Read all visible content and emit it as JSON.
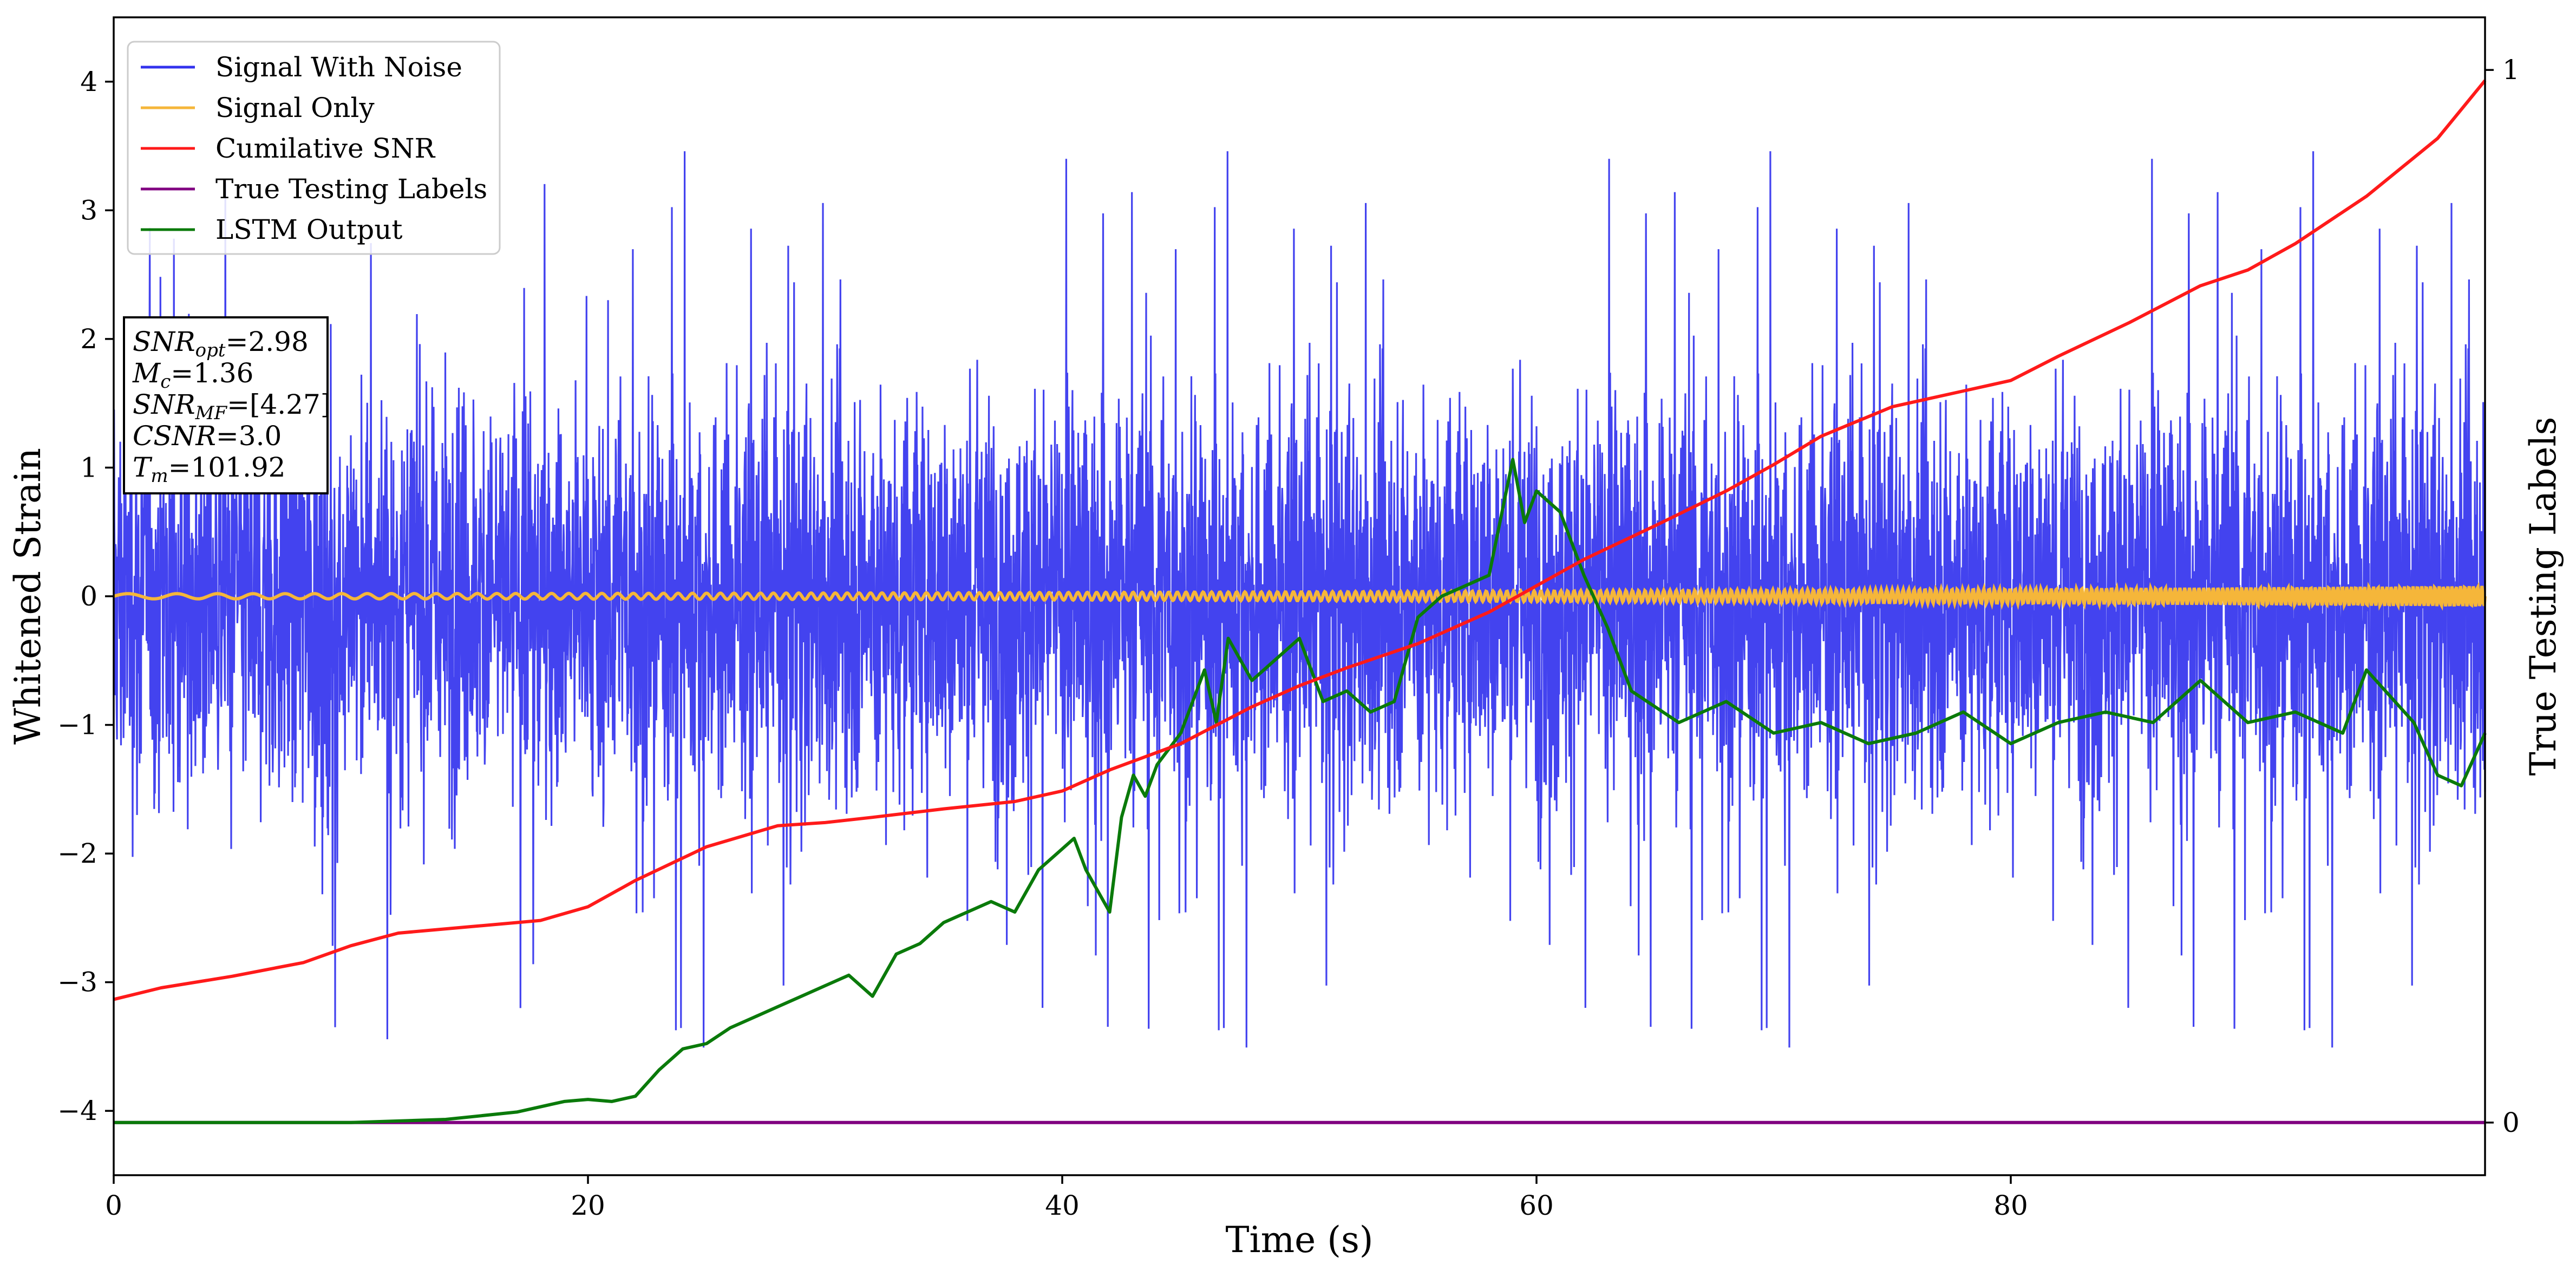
{
  "chart_data": {
    "type": "line",
    "xlabel": "Time (s)",
    "ylabel": "Whitened Strain",
    "ylabel_right": "True Testing Labels",
    "xlim": [
      0,
      100
    ],
    "ylim": [
      -4.5,
      4.5
    ],
    "ylim_right": [
      -0.05,
      1.05
    ],
    "x_ticks": [
      0,
      20,
      40,
      60,
      80
    ],
    "y_ticks": [
      -4,
      -3,
      -2,
      -1,
      0,
      1,
      2,
      3,
      4
    ],
    "y_right_ticks": [
      0,
      1
    ],
    "grid": false,
    "legend_position": "top-left",
    "colors": {
      "signal_with_noise": "#3333ee",
      "signal_only": "#f5b63a",
      "cumulative_snr": "#ff1a1a",
      "true_testing_labels": "#800080",
      "lstm_output": "#0a7a0a"
    },
    "series": [
      {
        "name": "Signal With Noise",
        "axis": "left",
        "description_kind": "noise band",
        "approx_range": [
          -4.1,
          4.0
        ],
        "typical_envelope": [
          -1.8,
          1.9
        ]
      },
      {
        "name": "Signal Only",
        "axis": "left",
        "description_kind": "chirp",
        "amplitude_start": 0.02,
        "amplitude_end": 0.08
      },
      {
        "name": "Cumilative SNR",
        "axis": "right",
        "x": [
          0,
          2,
          5,
          8,
          10,
          12,
          15,
          18,
          20,
          22,
          25,
          28,
          30,
          32,
          35,
          38,
          40,
          42,
          45,
          48,
          50,
          52,
          55,
          58,
          60,
          62,
          65,
          68,
          70,
          72,
          75,
          78,
          80,
          82,
          85,
          88,
          90,
          92,
          95,
          98,
          100
        ],
        "y": [
          0.117,
          0.128,
          0.139,
          0.152,
          0.168,
          0.18,
          0.186,
          0.192,
          0.205,
          0.23,
          0.262,
          0.282,
          0.285,
          0.29,
          0.298,
          0.305,
          0.315,
          0.335,
          0.36,
          0.395,
          0.415,
          0.432,
          0.455,
          0.485,
          0.51,
          0.535,
          0.567,
          0.6,
          0.625,
          0.652,
          0.68,
          0.695,
          0.705,
          0.728,
          0.76,
          0.795,
          0.81,
          0.835,
          0.88,
          0.935,
          0.99
        ]
      },
      {
        "name": "True Testing Labels",
        "axis": "right",
        "x": [
          0,
          100
        ],
        "y": [
          0,
          0
        ]
      },
      {
        "name": "LSTM Output",
        "axis": "right",
        "x": [
          0,
          5,
          10,
          14,
          17,
          19,
          20,
          21,
          22,
          23,
          24,
          25,
          26,
          27,
          28,
          29,
          30,
          31,
          32,
          33,
          34,
          35,
          36,
          37,
          38,
          39,
          40,
          40.5,
          41,
          42,
          42.5,
          43,
          43.5,
          44,
          45,
          46,
          46.5,
          47,
          48,
          49,
          50,
          51,
          52,
          53,
          54,
          55,
          56,
          57,
          58,
          59,
          59.5,
          60,
          61,
          62,
          63,
          64,
          66,
          68,
          70,
          72,
          74,
          76,
          78,
          80,
          82,
          84,
          86,
          88,
          90,
          92,
          94,
          95,
          97,
          98,
          99,
          100
        ],
        "y": [
          0,
          0,
          0,
          0.003,
          0.01,
          0.02,
          0.022,
          0.02,
          0.025,
          0.05,
          0.07,
          0.075,
          0.09,
          0.1,
          0.11,
          0.12,
          0.13,
          0.14,
          0.12,
          0.16,
          0.17,
          0.19,
          0.2,
          0.21,
          0.2,
          0.24,
          0.26,
          0.27,
          0.24,
          0.2,
          0.29,
          0.33,
          0.31,
          0.34,
          0.37,
          0.43,
          0.38,
          0.46,
          0.42,
          0.44,
          0.46,
          0.4,
          0.41,
          0.39,
          0.4,
          0.48,
          0.5,
          0.51,
          0.52,
          0.63,
          0.57,
          0.6,
          0.58,
          0.52,
          0.47,
          0.41,
          0.38,
          0.4,
          0.37,
          0.38,
          0.36,
          0.37,
          0.39,
          0.36,
          0.38,
          0.39,
          0.38,
          0.42,
          0.38,
          0.39,
          0.37,
          0.43,
          0.38,
          0.33,
          0.32,
          0.37
        ]
      }
    ],
    "annotation": {
      "lines": [
        {
          "label": "SNR",
          "sub": "opt",
          "value": "=2.98"
        },
        {
          "label": "M",
          "sub": "c",
          "value": "=1.36"
        },
        {
          "label": "SNR",
          "sub": "MF",
          "value": "=[4.27]"
        },
        {
          "label": "CSNR",
          "sub": "",
          "value": "=3.0"
        },
        {
          "label": "T",
          "sub": "m",
          "value": "=101.92"
        }
      ]
    }
  }
}
